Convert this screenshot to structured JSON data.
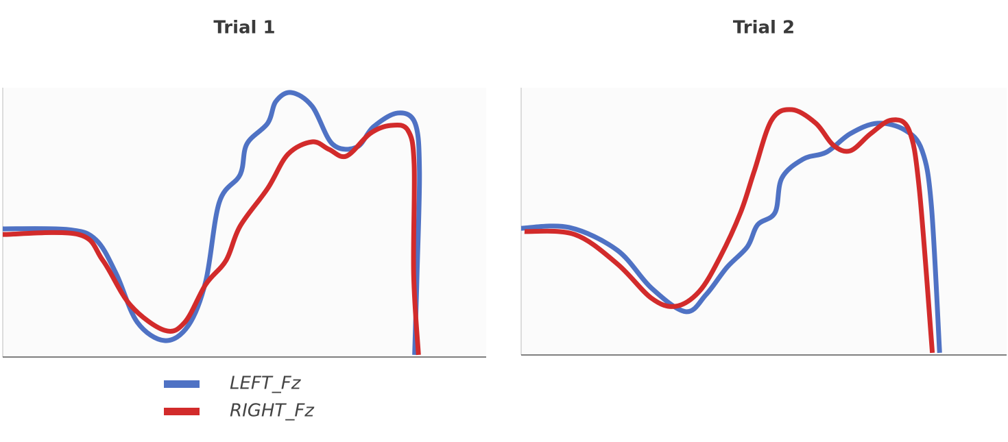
{
  "chart_data": [
    {
      "type": "line",
      "title": "Trial 1",
      "xlim": [
        0,
        100
      ],
      "ylim": [
        0,
        100
      ],
      "series": [
        {
          "name": "LEFT_Fz",
          "color": "#4f72c4",
          "x": [
            0,
            13.6,
            19.3,
            23.5,
            27.8,
            33.5,
            38.4,
            42,
            44.8,
            49.1,
            50.5,
            54.8,
            56.5,
            59.7,
            64,
            68.2,
            73.2,
            76.7,
            81.7,
            85.3,
            86.2,
            85.7,
            85.2
          ],
          "values": [
            47.6,
            47.3,
            43.5,
            30.8,
            13,
            6.1,
            11.7,
            28.2,
            57.5,
            67.7,
            79.1,
            86.8,
            94.9,
            98.2,
            93.1,
            79.1,
            77.9,
            85.5,
            90.6,
            86.8,
            69,
            30.8,
            0.8
          ]
        },
        {
          "name": "RIGHT_Fz",
          "color": "#d22b2b",
          "x": [
            0,
            15.7,
            20.7,
            26.4,
            33.5,
            37.7,
            42,
            46.2,
            49.1,
            54.8,
            59,
            64,
            67.5,
            71.1,
            76,
            80.3,
            83.8,
            85.1,
            85,
            86
          ],
          "values": [
            45.5,
            45.5,
            35.9,
            19.3,
            9.9,
            13,
            27,
            35.9,
            48.6,
            62.6,
            75.3,
            79.9,
            77.1,
            74.6,
            83,
            86,
            84.2,
            71.5,
            30.8,
            0.8
          ]
        }
      ]
    },
    {
      "type": "line",
      "title": "Trial 2",
      "xlim": [
        0,
        100
      ],
      "ylim": [
        0,
        100
      ],
      "series": [
        {
          "color": "#4f72c4",
          "x": [
            0,
            9.9,
            19.8,
            26.8,
            33.9,
            38.1,
            42.4,
            46.6,
            48.7,
            52.3,
            53.7,
            58.1,
            62.9,
            67.8,
            73.4,
            79.1,
            82.6,
            84.5,
            86.2
          ],
          "values": [
            47.4,
            47.7,
            39.2,
            25.1,
            16.2,
            22.6,
            32.8,
            40.5,
            48.7,
            53.3,
            66.2,
            73.3,
            75.9,
            82.8,
            86.7,
            84.1,
            76.4,
            55.9,
            0.8
          ]
        },
        {
          "color": "#d22b2b",
          "x": [
            0.7,
            11,
            19.8,
            26.8,
            31.8,
            36.7,
            41,
            45.2,
            48,
            51.6,
            55.8,
            60.7,
            64.3,
            67.8,
            72,
            76.3,
            79.9,
            82,
            84.7
          ],
          "values": [
            46.2,
            45.1,
            34.1,
            21.3,
            18.2,
            23.8,
            36.7,
            53.3,
            68.7,
            87.9,
            91.8,
            86.7,
            78.5,
            76.4,
            82.8,
            87.9,
            84.1,
            62.3,
            0.8
          ]
        }
      ]
    }
  ]
}
